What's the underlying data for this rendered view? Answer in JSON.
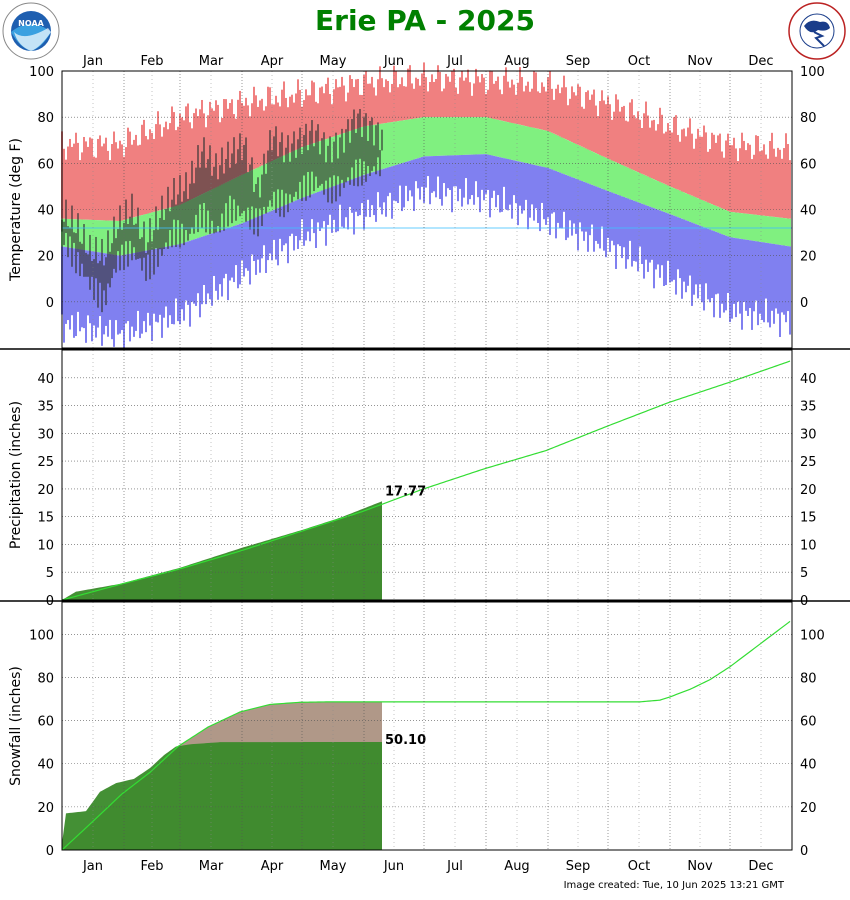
{
  "page": {
    "title": "Erie PA - 2025",
    "title_color": "#008000",
    "footer": "Image created: Tue, 10 Jun 2025 13:21 GMT",
    "logos": [
      "noaa-logo-icon",
      "nws-logo-icon"
    ]
  },
  "colors": {
    "record_high": "#f08080",
    "normal_range": "#80f080",
    "record_low": "#8080f0",
    "observed": "#333333",
    "normal_line": "#33dd33",
    "observed_fill": "#3a8a2a",
    "normal_fill": "#b09888"
  },
  "chart_data": [
    {
      "type": "bar",
      "panel": "temperature",
      "xlabel": "",
      "ylabel": "Temperature (deg F)",
      "months": [
        "Jan",
        "Feb",
        "Mar",
        "Apr",
        "May",
        "Jun",
        "Jul",
        "Aug",
        "Sep",
        "Oct",
        "Nov",
        "Dec"
      ],
      "ylim": [
        -20,
        100
      ],
      "yticks": [
        0,
        20,
        40,
        60,
        80,
        100
      ],
      "normal_high_doy": [
        [
          1,
          36
        ],
        [
          30,
          35
        ],
        [
          60,
          42
        ],
        [
          91,
          55
        ],
        [
          121,
          67
        ],
        [
          152,
          76
        ],
        [
          182,
          80
        ],
        [
          213,
          80
        ],
        [
          244,
          74
        ],
        [
          274,
          62
        ],
        [
          305,
          50
        ],
        [
          335,
          39
        ],
        [
          365,
          36
        ]
      ],
      "normal_low_doy": [
        [
          1,
          24
        ],
        [
          30,
          20
        ],
        [
          60,
          25
        ],
        [
          91,
          34
        ],
        [
          121,
          45
        ],
        [
          152,
          55
        ],
        [
          182,
          63
        ],
        [
          213,
          64
        ],
        [
          244,
          58
        ],
        [
          274,
          48
        ],
        [
          305,
          38
        ],
        [
          335,
          28
        ],
        [
          365,
          24
        ]
      ],
      "record_high_doy": [
        [
          1,
          68
        ],
        [
          30,
          68
        ],
        [
          60,
          80
        ],
        [
          91,
          86
        ],
        [
          121,
          90
        ],
        [
          152,
          95
        ],
        [
          182,
          97
        ],
        [
          213,
          96
        ],
        [
          244,
          94
        ],
        [
          274,
          86
        ],
        [
          305,
          76
        ],
        [
          335,
          68
        ],
        [
          365,
          66
        ]
      ],
      "record_low_doy": [
        [
          1,
          -10
        ],
        [
          30,
          -14
        ],
        [
          60,
          -6
        ],
        [
          91,
          12
        ],
        [
          121,
          28
        ],
        [
          152,
          38
        ],
        [
          182,
          48
        ],
        [
          213,
          45
        ],
        [
          244,
          35
        ],
        [
          274,
          24
        ],
        [
          305,
          10
        ],
        [
          335,
          -4
        ],
        [
          365,
          -8
        ]
      ],
      "observed_through_doy": 161,
      "observed_ranges": [
        [
          1,
          29,
          39
        ],
        [
          8,
          18,
          33
        ],
        [
          15,
          8,
          22
        ],
        [
          22,
          0,
          20
        ],
        [
          29,
          18,
          34
        ],
        [
          36,
          22,
          40
        ],
        [
          43,
          14,
          26
        ],
        [
          50,
          20,
          38
        ],
        [
          57,
          30,
          47
        ],
        [
          64,
          28,
          50
        ],
        [
          71,
          38,
          66
        ],
        [
          78,
          30,
          58
        ],
        [
          85,
          40,
          64
        ],
        [
          92,
          38,
          68
        ],
        [
          99,
          34,
          48
        ],
        [
          106,
          44,
          72
        ],
        [
          113,
          42,
          66
        ],
        [
          120,
          48,
          70
        ],
        [
          127,
          52,
          74
        ],
        [
          134,
          48,
          66
        ],
        [
          141,
          50,
          70
        ],
        [
          148,
          56,
          80
        ],
        [
          155,
          56,
          76
        ],
        [
          161,
          60,
          72
        ]
      ]
    },
    {
      "type": "area",
      "panel": "precipitation",
      "xlabel": "",
      "ylabel": "Precipitation (inches)",
      "ylim": [
        0,
        45
      ],
      "yticks": [
        0,
        5,
        10,
        15,
        20,
        25,
        30,
        35,
        40
      ],
      "label": "17.77",
      "observed_through_doy": 161,
      "observed_ytd": [
        [
          1,
          0
        ],
        [
          8,
          1.5
        ],
        [
          30,
          2.9
        ],
        [
          60,
          5.8
        ],
        [
          91,
          9.4
        ],
        [
          121,
          12.6
        ],
        [
          140,
          14.8
        ],
        [
          161,
          17.77
        ]
      ],
      "normal_ytd": [
        [
          1,
          0
        ],
        [
          31,
          2.9
        ],
        [
          59,
          5.5
        ],
        [
          90,
          8.8
        ],
        [
          120,
          12.3
        ],
        [
          151,
          15.9
        ],
        [
          181,
          19.9
        ],
        [
          212,
          23.6
        ],
        [
          243,
          26.9
        ],
        [
          273,
          31.2
        ],
        [
          304,
          35.5
        ],
        [
          334,
          39.1
        ],
        [
          365,
          43.0
        ]
      ]
    },
    {
      "type": "area",
      "panel": "snowfall",
      "xlabel": "",
      "ylabel": "Snowfall (inches)",
      "ylim": [
        0,
        115
      ],
      "yticks": [
        0,
        20,
        40,
        60,
        80,
        100
      ],
      "label": "50.10",
      "observed_through_doy": 161,
      "observed_ytd": [
        [
          1,
          3
        ],
        [
          3,
          17
        ],
        [
          13,
          18
        ],
        [
          20,
          27
        ],
        [
          28,
          31
        ],
        [
          37,
          33
        ],
        [
          45,
          38
        ],
        [
          52,
          44
        ],
        [
          58,
          48
        ],
        [
          65,
          49
        ],
        [
          80,
          50
        ],
        [
          161,
          50.1
        ]
      ],
      "normal_ytd": [
        [
          1,
          0
        ],
        [
          15,
          12
        ],
        [
          31,
          26
        ],
        [
          45,
          36
        ],
        [
          59,
          48
        ],
        [
          74,
          57
        ],
        [
          90,
          64
        ],
        [
          105,
          67.5
        ],
        [
          120,
          68.5
        ],
        [
          135,
          68.7
        ],
        [
          161,
          68.7
        ],
        [
          290,
          68.7
        ],
        [
          300,
          69.5
        ],
        [
          305,
          71
        ],
        [
          315,
          74.5
        ],
        [
          325,
          79
        ],
        [
          335,
          85
        ],
        [
          345,
          92
        ],
        [
          355,
          99
        ],
        [
          365,
          106
        ]
      ]
    }
  ],
  "footer_label": "Image created: Tue, 10 Jun 2025 13:21 GMT"
}
